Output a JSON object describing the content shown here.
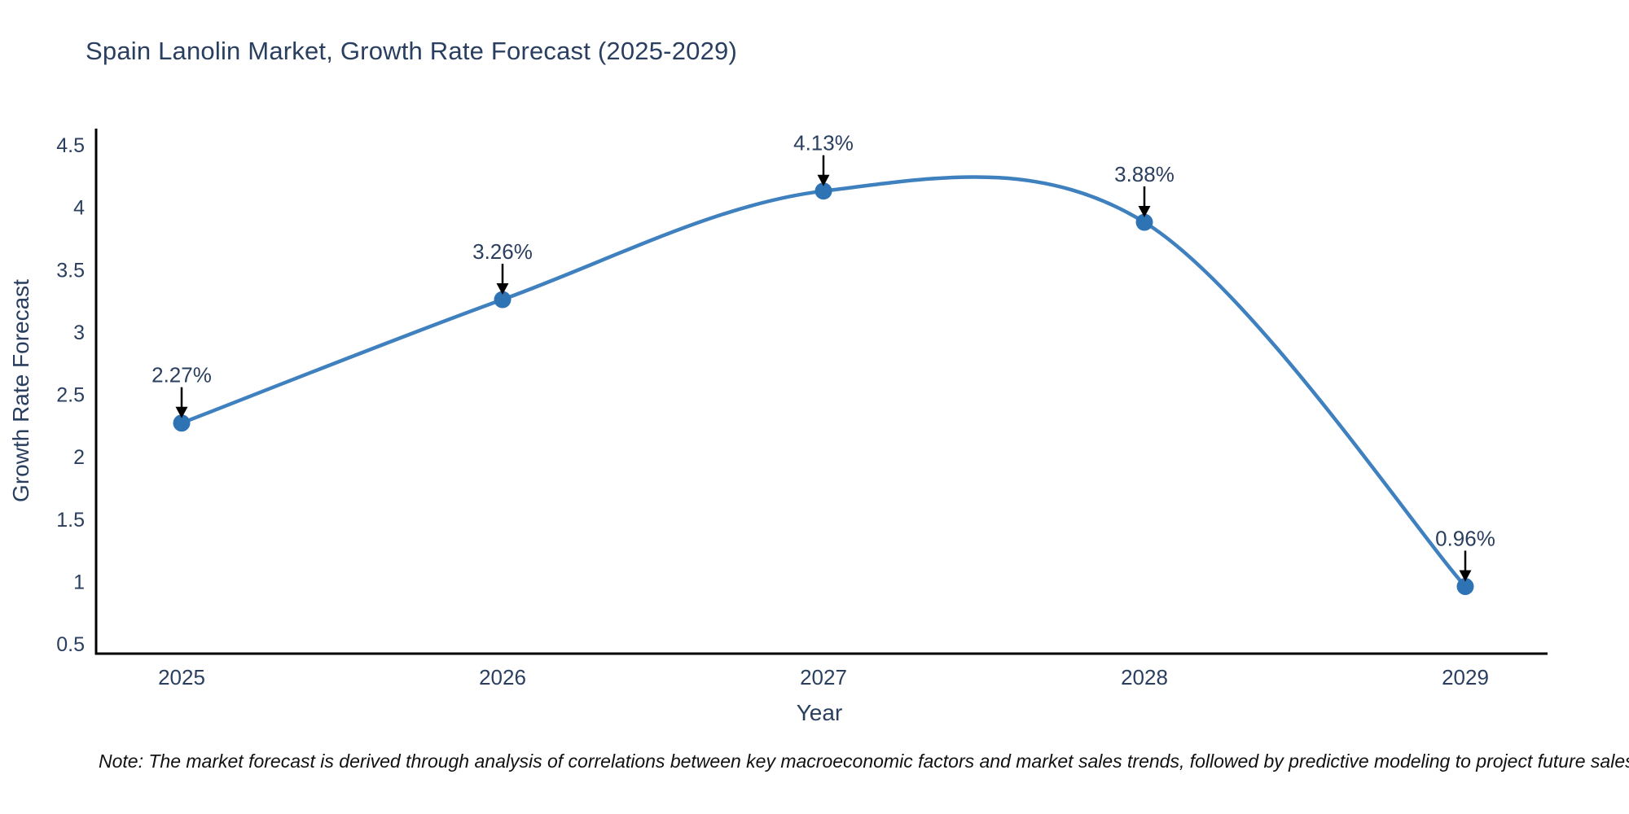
{
  "page": {
    "background": "#ffffff"
  },
  "note": {
    "text": "Note: The market forecast is derived through analysis of correlations between key macroeconomic factors and market sales trends, followed by predictive modeling to project future sales."
  },
  "chart_data": {
    "type": "line",
    "title": "Spain Lanolin Market, Growth Rate Forecast (2025-2029)",
    "xlabel": "Year",
    "ylabel": "Growth Rate Forecast",
    "categories": [
      "2025",
      "2026",
      "2027",
      "2028",
      "2029"
    ],
    "series": [
      {
        "name": "Growth Rate Forecast",
        "values": [
          2.27,
          3.26,
          4.13,
          3.88,
          0.96
        ]
      }
    ],
    "point_labels": [
      "2.27%",
      "3.26%",
      "4.13%",
      "3.88%",
      "0.96%"
    ],
    "yticks": [
      0.5,
      1,
      1.5,
      2,
      2.5,
      3,
      3.5,
      4,
      4.5
    ],
    "ylim": [
      0.5,
      4.5
    ],
    "curve": "spline",
    "grid": false,
    "legend": false,
    "markers": true,
    "annotation_style": "value-label-with-down-arrow",
    "colors": {
      "line": "#3f80bf",
      "marker": "#2e74b5",
      "axis": "#000000",
      "tick_text": "#2a3f5f",
      "annotation_text": "#2a3f5f",
      "arrow": "#000000",
      "title_text": "#2a3f5f"
    }
  }
}
